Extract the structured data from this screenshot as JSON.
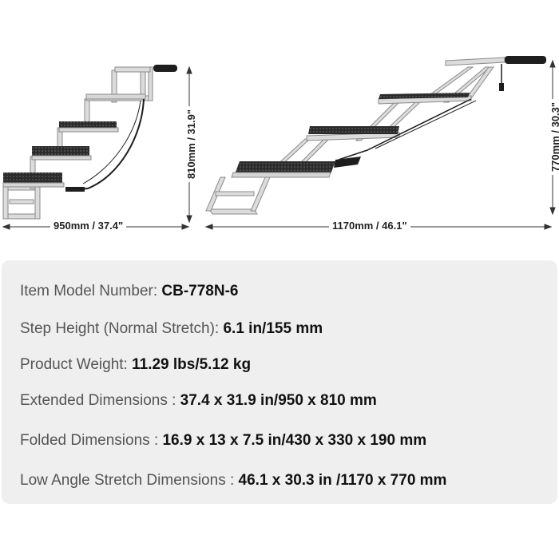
{
  "dimensions": {
    "stairs_width": "950mm / 37.4\"",
    "stairs_height": "810mm / 31.9\"",
    "ramp_width": "1170mm / 46.1\"",
    "ramp_height": "770mm / 30.3\""
  },
  "specs": [
    {
      "label": "Item Model Number: ",
      "value": "CB-778N-6"
    },
    {
      "label": "Step Height (Normal Stretch): ",
      "value": "6.1 in/155 mm"
    },
    {
      "label": "Product Weight: ",
      "value": "11.29 lbs/5.12 kg"
    },
    {
      "label": "Extended Dimensions : ",
      "value": "37.4 x 31.9 in/950 x 810 mm"
    },
    {
      "label": "Folded Dimensions : ",
      "value": "16.9 x 13 x 7.5 in/430 x 330 x 190 mm"
    },
    {
      "label": "Low Angle Stretch Dimensions : ",
      "value": "46.1 x 30.3 in /1170 x 770 mm"
    }
  ],
  "colors": {
    "panel": "#efefef",
    "frame": "#c8c8c8",
    "tread": "#2b2b2b"
  }
}
